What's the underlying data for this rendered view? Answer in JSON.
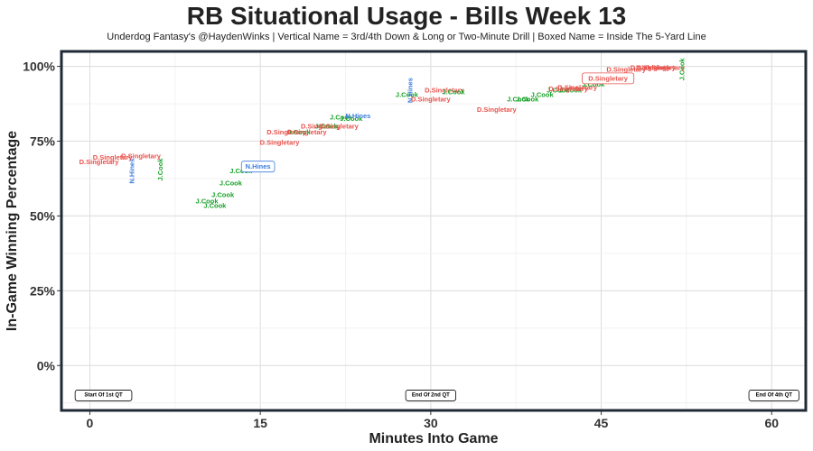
{
  "chart_data": {
    "type": "scatter",
    "title": "RB Situational Usage - Bills Week 13",
    "subtitle": "Underdog Fantasy's @HaydenWinks | Vertical Name = 3rd/4th Down & Long or Two-Minute Drill | Boxed Name = Inside The 5-Yard Line",
    "xlabel": "Minutes Into Game",
    "ylabel": "In-Game Winning Percentage",
    "xlim": [
      -2.5,
      63
    ],
    "ylim": [
      -15,
      105
    ],
    "xticks": [
      0,
      15,
      30,
      45,
      60
    ],
    "xtick_labels": [
      "0",
      "15",
      "30",
      "45",
      "60"
    ],
    "yticks": [
      0,
      25,
      50,
      75,
      100
    ],
    "ytick_labels": [
      "0%",
      "25%",
      "50%",
      "75%",
      "100%"
    ],
    "grid": true,
    "colors": {
      "D.Singletary": "#e8534d",
      "J.Cook": "#1aa32a",
      "N.Hines": "#3b7ddd",
      "border": "#1f2a36"
    },
    "quarter_markers": [
      {
        "label": "Start Of 1st QT",
        "x": 1.2
      },
      {
        "label": "End Of 2nd QT",
        "x": 30
      },
      {
        "label": "End Of 4th QT",
        "x": 60.2
      }
    ],
    "points": [
      {
        "name": "D.Singletary",
        "x": 0.8,
        "y": 68,
        "style": "normal"
      },
      {
        "name": "D.Singletary",
        "x": 2,
        "y": 69.5,
        "style": "normal"
      },
      {
        "name": "D.Singletary",
        "x": 4.5,
        "y": 70,
        "style": "normal"
      },
      {
        "name": "N.Hines",
        "x": 3.7,
        "y": 65,
        "style": "vertical"
      },
      {
        "name": "J.Cook",
        "x": 6.2,
        "y": 65.5,
        "style": "vertical"
      },
      {
        "name": "J.Cook",
        "x": 10.3,
        "y": 55,
        "style": "normal"
      },
      {
        "name": "J.Cook",
        "x": 11.7,
        "y": 57,
        "style": "normal"
      },
      {
        "name": "J.Cook",
        "x": 11,
        "y": 53.5,
        "style": "normal"
      },
      {
        "name": "J.Cook",
        "x": 12.4,
        "y": 61,
        "style": "normal"
      },
      {
        "name": "J.Cook",
        "x": 13.3,
        "y": 65,
        "style": "normal"
      },
      {
        "name": "N.Hines",
        "x": 14.8,
        "y": 66.5,
        "style": "boxed"
      },
      {
        "name": "D.Singletary",
        "x": 16.7,
        "y": 74.5,
        "style": "normal"
      },
      {
        "name": "D.Singletary",
        "x": 17.3,
        "y": 78,
        "style": "normal"
      },
      {
        "name": "J.Cook",
        "x": 18.4,
        "y": 78,
        "style": "normal"
      },
      {
        "name": "D.Singletary",
        "x": 19.1,
        "y": 78,
        "style": "normal"
      },
      {
        "name": "D.Singletary",
        "x": 20.3,
        "y": 80,
        "style": "normal"
      },
      {
        "name": "J.Cook",
        "x": 20.8,
        "y": 80,
        "style": "normal"
      },
      {
        "name": "D.Singletary",
        "x": 21.9,
        "y": 80,
        "style": "normal"
      },
      {
        "name": "J.Cook",
        "x": 22.1,
        "y": 83,
        "style": "normal"
      },
      {
        "name": "J.Cook",
        "x": 23,
        "y": 82.5,
        "style": "normal"
      },
      {
        "name": "N.Hines",
        "x": 23.6,
        "y": 83.5,
        "style": "normal"
      },
      {
        "name": "J.Cook",
        "x": 27.9,
        "y": 90.5,
        "style": "normal"
      },
      {
        "name": "N.Hines",
        "x": 28.2,
        "y": 92,
        "style": "vertical"
      },
      {
        "name": "D.Singletary",
        "x": 30,
        "y": 89,
        "style": "normal"
      },
      {
        "name": "D.Singletary",
        "x": 31.2,
        "y": 92,
        "style": "normal"
      },
      {
        "name": "J.Cook",
        "x": 32,
        "y": 91.5,
        "style": "normal"
      },
      {
        "name": "D.Singletary",
        "x": 35.8,
        "y": 85.5,
        "style": "normal"
      },
      {
        "name": "J.Cook",
        "x": 37.7,
        "y": 89,
        "style": "normal"
      },
      {
        "name": "J.Cook",
        "x": 38.5,
        "y": 89,
        "style": "normal"
      },
      {
        "name": "J.Cook",
        "x": 39.8,
        "y": 90.5,
        "style": "normal"
      },
      {
        "name": "J.Cook",
        "x": 41.2,
        "y": 92,
        "style": "normal"
      },
      {
        "name": "J.Cook",
        "x": 42.3,
        "y": 92,
        "style": "normal"
      },
      {
        "name": "D.Singletary",
        "x": 42.1,
        "y": 92.5,
        "style": "normal"
      },
      {
        "name": "D.Singletary",
        "x": 42.9,
        "y": 93,
        "style": "normal"
      },
      {
        "name": "J.Cook",
        "x": 44.3,
        "y": 94,
        "style": "normal"
      },
      {
        "name": "D.Singletary",
        "x": 45.6,
        "y": 96,
        "style": "boxed"
      },
      {
        "name": "D.Singletary",
        "x": 47.2,
        "y": 99,
        "style": "normal"
      },
      {
        "name": "D.Singletary",
        "x": 49.3,
        "y": 99.5,
        "style": "normal"
      },
      {
        "name": "D.Singletary",
        "x": 49.8,
        "y": 99.5,
        "style": "normal"
      },
      {
        "name": "D.Singletary",
        "x": 50.6,
        "y": 99.5,
        "style": "normal"
      },
      {
        "name": "J.Cook",
        "x": 52.1,
        "y": 99,
        "style": "vertical"
      }
    ]
  }
}
